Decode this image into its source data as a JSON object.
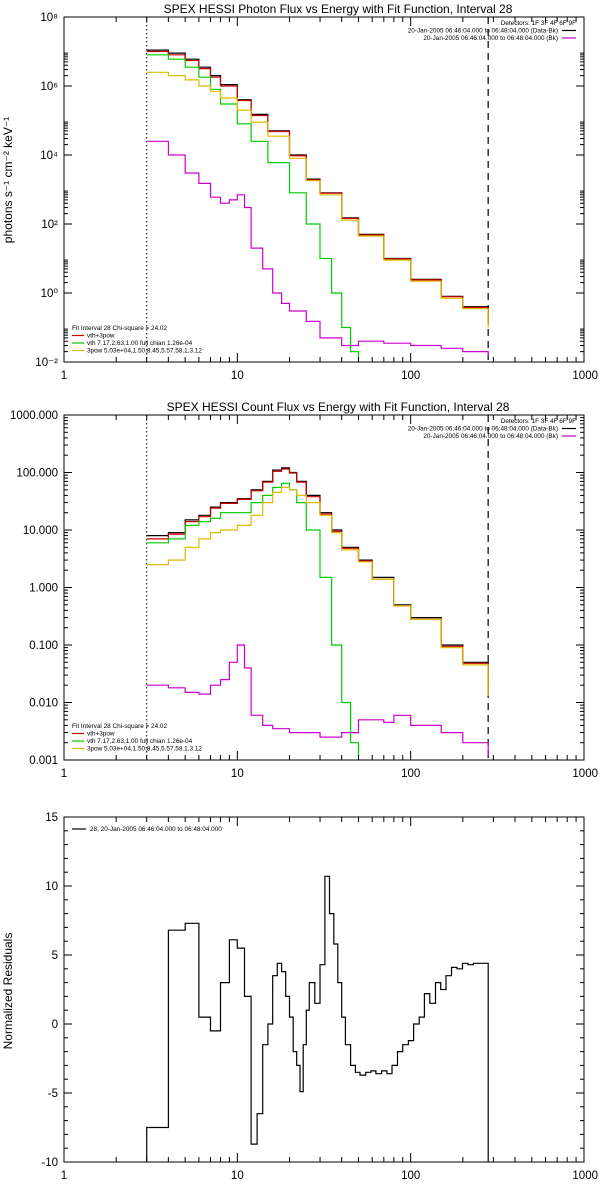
{
  "chart_data": [
    {
      "type": "line",
      "title": "SPEX HESSI Photon Flux vs Energy with Fit Function, Interval 28",
      "xlabel": "",
      "ylabel": "photons s⁻¹ cm⁻² keV⁻¹",
      "xscale": "log",
      "yscale": "log",
      "xlim": [
        1,
        1000
      ],
      "ylim": [
        0.01,
        100000000
      ],
      "x_ticks": [
        1,
        10,
        100,
        1000
      ],
      "x_tick_labels": [
        "1",
        "10",
        "100",
        "1000"
      ],
      "y_ticks": [
        0.01,
        1,
        100,
        10000,
        1000000,
        100000000
      ],
      "y_tick_labels": [
        "10⁻²",
        "10⁰",
        "10²",
        "10⁴",
        "10⁶",
        "10⁸"
      ],
      "vertical_lines": [
        {
          "x": 3,
          "style": "dotted"
        },
        {
          "x": 280,
          "style": "dashed"
        }
      ],
      "header_text": [
        "Detectors: 1F 3F 4F 6F 9F",
        "20-Jan-2005 06:46:04.000 to 06:48:04.000 (Data-Bk)",
        "20-Jan-2005 06:46:04.000 to 06:48:04.000 (Bk)"
      ],
      "header_colors": [
        "",
        "#000000",
        "#cc00cc"
      ],
      "fit_text": [
        "Fit Interval 28    Chi-square = 24.02",
        "vth+3pow",
        "vth 7.17,2.63,1.00  full chian 1.26e-04",
        "3pow 5.03e+04,1.50,8.45,5.57,58.1,3.12"
      ],
      "fit_colors": [
        "",
        "#cc0000",
        "#00cc00",
        "#ddbb00"
      ],
      "series": [
        {
          "color": "#000000",
          "x": [
            3,
            4,
            5,
            6,
            7,
            8,
            10,
            12,
            15,
            20,
            25,
            30,
            40,
            50,
            70,
            100,
            150,
            200,
            280
          ],
          "y": [
            11000000.0,
            9000000.0,
            6000000.0,
            3500000.0,
            2000000.0,
            1100000.0,
            400000.0,
            150000.0,
            50000.0,
            10000.0,
            2000,
            800,
            150,
            50,
            10,
            2.5,
            0.8,
            0.4,
            0.13
          ]
        },
        {
          "color": "#cc0000",
          "x": [
            3,
            4,
            5,
            6,
            7,
            8,
            10,
            12,
            15,
            20,
            25,
            30,
            40,
            50,
            70,
            100,
            150,
            200,
            280
          ],
          "y": [
            10000000.0,
            8000000.0,
            5500000.0,
            3200000.0,
            1800000.0,
            1000000.0,
            380000.0,
            140000.0,
            48000.0,
            9500.0,
            1900,
            780,
            145,
            48,
            9.8,
            2.4,
            0.78,
            0.38,
            0.12
          ]
        },
        {
          "color": "#00cc00",
          "x": [
            3,
            4,
            5,
            6,
            7,
            8,
            10,
            12,
            15,
            20,
            25,
            30,
            35,
            40,
            45,
            50
          ],
          "y": [
            8000000.0,
            6000000.0,
            3500000.0,
            1800000.0,
            800000.0,
            300000.0,
            80000.0,
            25000.0,
            6000,
            800,
            100,
            10,
            1,
            0.1,
            0.02,
            0.01
          ]
        },
        {
          "color": "#ddbb00",
          "x": [
            3,
            4,
            5,
            6,
            7,
            8,
            10,
            12,
            15,
            20,
            25,
            30,
            40,
            50,
            70,
            100,
            150,
            200,
            280
          ],
          "y": [
            2500000.0,
            2000000.0,
            1500000.0,
            1000000.0,
            700000.0,
            450000.0,
            200000.0,
            90000.0,
            35000.0,
            8000.0,
            1800,
            700,
            130,
            45,
            9,
            2.2,
            0.7,
            0.35,
            0.1
          ]
        },
        {
          "color": "#cc00cc",
          "x": [
            3,
            4,
            5,
            6,
            7,
            8,
            9,
            10,
            11,
            12,
            14,
            16,
            18,
            20,
            25,
            30,
            40,
            50,
            70,
            100,
            150,
            200,
            280
          ],
          "y": [
            25000,
            10000,
            3000,
            1500,
            600,
            400,
            500,
            700,
            300,
            20,
            5,
            1,
            0.5,
            0.3,
            0.15,
            0.05,
            0.03,
            0.04,
            0.035,
            0.03,
            0.025,
            0.02,
            0.015
          ]
        }
      ]
    },
    {
      "type": "line",
      "title": "SPEX HESSI Count Flux vs Energy with Fit Function, Interval 28",
      "xlabel": "",
      "ylabel": "",
      "xscale": "log",
      "yscale": "log",
      "xlim": [
        1,
        1000
      ],
      "ylim": [
        0.001,
        1000
      ],
      "x_ticks": [
        1,
        10,
        100,
        1000
      ],
      "x_tick_labels": [
        "1",
        "10",
        "100",
        "1000"
      ],
      "y_ticks": [
        0.001,
        0.01,
        0.1,
        1,
        10,
        100,
        1000
      ],
      "y_tick_labels": [
        "0.001",
        "0.010",
        "0.100",
        "1.000",
        "10.000",
        "100.000",
        "1000.000"
      ],
      "vertical_lines": [
        {
          "x": 3,
          "style": "dotted"
        },
        {
          "x": 280,
          "style": "dashed"
        }
      ],
      "header_text": [
        "Detectors: 1F 3F 4F 6F 9F",
        "20-Jan-2005 06:46:04.000 to 06:48:04.000 (Data-Bk)",
        "20-Jan-2005 06:46:04.000 to 06:48:04.000 (Bk)"
      ],
      "header_colors": [
        "",
        "#000000",
        "#cc00cc"
      ],
      "fit_text": [
        "Fit Interval 28    Chi-square = 24.02",
        "vth+3pow",
        "vth 7.17,2.63,1.00  full chian 1.26e-04",
        "3pow 5.03e+04,1.50,8.45,5.57,58.1,3.12"
      ],
      "fit_colors": [
        "",
        "#cc0000",
        "#00cc00",
        "#ddbb00"
      ],
      "series": [
        {
          "color": "#000000",
          "x": [
            3,
            4,
            5,
            6,
            7,
            8,
            10,
            12,
            14,
            16,
            18,
            20,
            22,
            25,
            30,
            35,
            40,
            50,
            60,
            80,
            100,
            150,
            200,
            280
          ],
          "y": [
            8,
            9,
            15,
            18,
            25,
            30,
            35,
            50,
            70,
            110,
            120,
            100,
            70,
            40,
            20,
            10,
            5,
            3,
            1.5,
            0.5,
            0.3,
            0.1,
            0.05,
            0.015
          ]
        },
        {
          "color": "#cc0000",
          "x": [
            3,
            4,
            5,
            6,
            7,
            8,
            10,
            12,
            14,
            16,
            18,
            20,
            22,
            25,
            30,
            35,
            40,
            50,
            60,
            80,
            100,
            150,
            200,
            280
          ],
          "y": [
            7,
            8.5,
            14,
            17,
            24,
            29,
            34,
            48,
            68,
            105,
            115,
            98,
            68,
            38,
            19,
            9.5,
            4.8,
            2.9,
            1.4,
            0.48,
            0.28,
            0.095,
            0.048,
            0.014
          ]
        },
        {
          "color": "#00cc00",
          "x": [
            3,
            4,
            5,
            6,
            7,
            8,
            10,
            12,
            14,
            16,
            18,
            20,
            22,
            25,
            30,
            35,
            40,
            45,
            50
          ],
          "y": [
            6,
            7,
            12,
            14,
            16,
            20,
            20,
            30,
            40,
            55,
            65,
            50,
            30,
            10,
            1.5,
            0.1,
            0.01,
            0.002,
            0.001
          ]
        },
        {
          "color": "#ddbb00",
          "x": [
            3,
            4,
            5,
            6,
            7,
            8,
            10,
            12,
            14,
            16,
            18,
            20,
            22,
            25,
            30,
            35,
            40,
            50,
            60,
            80,
            100,
            150,
            200,
            280
          ],
          "y": [
            2.5,
            3,
            5,
            7,
            9,
            10,
            12,
            18,
            30,
            45,
            55,
            50,
            40,
            30,
            18,
            9,
            4.5,
            2.8,
            1.4,
            0.48,
            0.28,
            0.09,
            0.045,
            0.013
          ]
        },
        {
          "color": "#cc00cc",
          "x": [
            3,
            4,
            5,
            6,
            7,
            8,
            9,
            10,
            11,
            12,
            14,
            16,
            20,
            25,
            30,
            40,
            50,
            70,
            80,
            100,
            150,
            200,
            280
          ],
          "y": [
            0.02,
            0.018,
            0.015,
            0.014,
            0.02,
            0.025,
            0.05,
            0.1,
            0.04,
            0.006,
            0.004,
            0.0035,
            0.003,
            0.003,
            0.0025,
            0.003,
            0.005,
            0.0045,
            0.006,
            0.004,
            0.003,
            0.002,
            0.0012
          ]
        }
      ]
    },
    {
      "type": "line",
      "title": "",
      "xlabel": "",
      "ylabel": "Normalized Residuals",
      "xscale": "log",
      "yscale": "linear",
      "xlim": [
        1,
        1000
      ],
      "ylim": [
        -10,
        15
      ],
      "x_ticks": [
        1,
        10,
        100,
        1000
      ],
      "x_tick_labels": [
        "1",
        "10",
        "100",
        "1000"
      ],
      "y_ticks": [
        -10,
        -5,
        0,
        5,
        10,
        15
      ],
      "y_tick_labels": [
        "-10",
        "-5",
        "0",
        "5",
        "10",
        "15"
      ],
      "legend_text": "28, 20-Jan-2005 06:46:04.000 to 06:48:04.000",
      "series": [
        {
          "color": "#000000",
          "step": true,
          "x": [
            3.0,
            4.0,
            5.0,
            6.0,
            7.0,
            8.0,
            9.0,
            10.0,
            11.0,
            12.0,
            13.0,
            14.0,
            15.0,
            16.0,
            17.0,
            18.0,
            19.0,
            20.0,
            21.0,
            22.0,
            23.0,
            24.0,
            25.0,
            26.0,
            28.0,
            30.0,
            32.0,
            34.0,
            36.0,
            38.0,
            40.0,
            42.0,
            45.0,
            48.0,
            51.0,
            55.0,
            59.0,
            63.0,
            68.0,
            73.0,
            78.0,
            84.0,
            90.0,
            97.0,
            104.0,
            112.0,
            120.0,
            129.0,
            139.0,
            149.0,
            160.0,
            172.0,
            185.0,
            199.0,
            214.0,
            230.0,
            248.0,
            266.0,
            280.0
          ],
          "y": [
            -7.5,
            6.8,
            7.3,
            0.5,
            -0.5,
            3,
            6.1,
            5.5,
            2,
            -8.7,
            -6.5,
            -1.5,
            0,
            3.5,
            4.4,
            3.8,
            2,
            0.5,
            -2,
            -3,
            -4.9,
            -1.5,
            1,
            3,
            1.5,
            4.3,
            10.7,
            8,
            5.8,
            3,
            0.5,
            -1.5,
            -3,
            -3.5,
            -3.7,
            -3.5,
            -3.4,
            -3.6,
            -3.4,
            -3.6,
            -3,
            -2,
            -1.5,
            -1.2,
            0,
            0.5,
            2.2,
            1.5,
            3,
            2.5,
            3.5,
            4.1,
            4,
            4.4,
            4.3,
            4.4,
            4.4,
            4.4,
            4.4
          ]
        }
      ]
    }
  ]
}
